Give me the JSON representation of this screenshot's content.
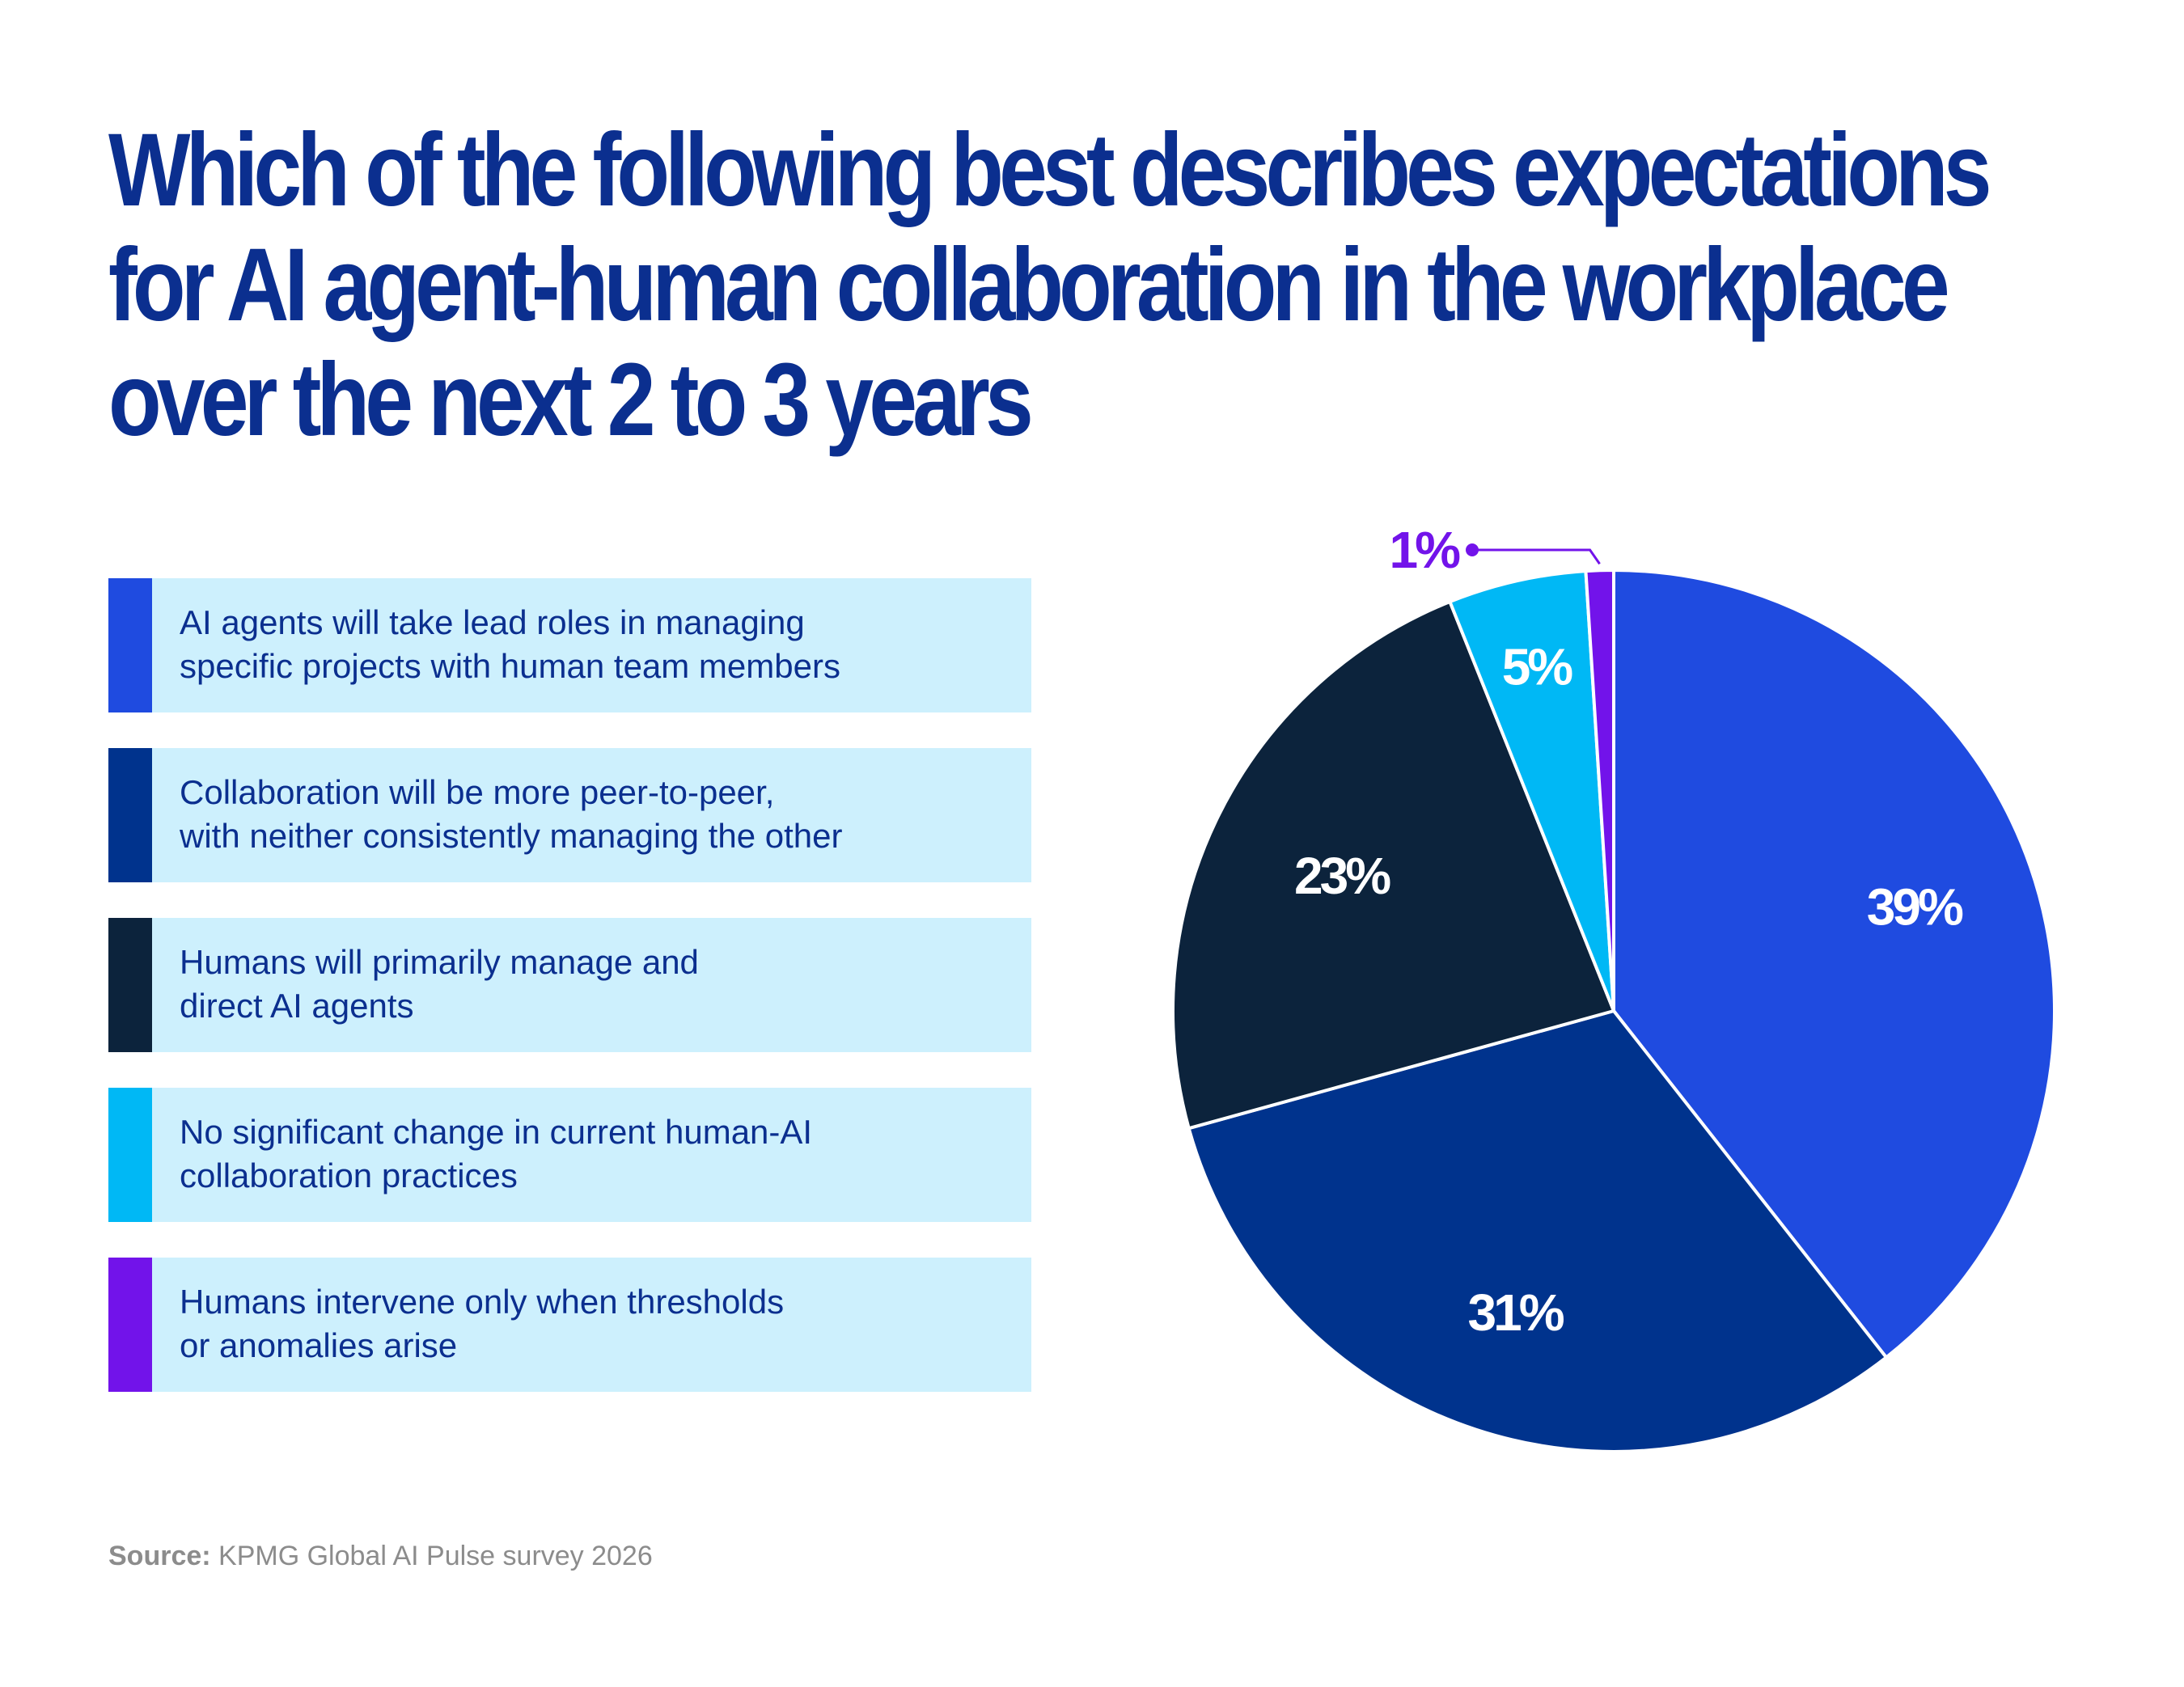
{
  "title_lines": [
    "Which of the following best describes expectations",
    "for AI agent-human collaboration in the workplace",
    "over the next 2 to 3 years"
  ],
  "source": {
    "label": "Source:",
    "text": " KPMG Global AI Pulse survey 2026"
  },
  "colors": {
    "title": "#0b2f8f",
    "legend_bg": "#cdf0fd"
  },
  "chart_data": {
    "type": "pie",
    "start": "12 o'clock, clockwise",
    "slices": [
      {
        "label_lines": [
          "AI agents will take lead roles in managing",
          "specific projects with human team members"
        ],
        "value": 39,
        "display": "39%",
        "color": "#1f4be0",
        "label_color": "#ffffff"
      },
      {
        "label_lines": [
          "Collaboration will be more peer-to-peer,",
          "with neither consistently managing the other"
        ],
        "value": 31,
        "display": "31%",
        "color": "#00338d",
        "label_color": "#ffffff"
      },
      {
        "label_lines": [
          "Humans will primarily manage and",
          "direct AI agents"
        ],
        "value": 23,
        "display": "23%",
        "color": "#0c233c",
        "label_color": "#ffffff"
      },
      {
        "label_lines": [
          "No significant change in current human-AI",
          "collaboration practices"
        ],
        "value": 5,
        "display": "5%",
        "color": "#00b8f5",
        "label_color": "#ffffff"
      },
      {
        "label_lines": [
          "Humans intervene only when thresholds",
          "or anomalies arise"
        ],
        "value": 1,
        "display": "1%",
        "color": "#7213ea",
        "label_color": "#7213ea",
        "callout": true
      }
    ]
  }
}
